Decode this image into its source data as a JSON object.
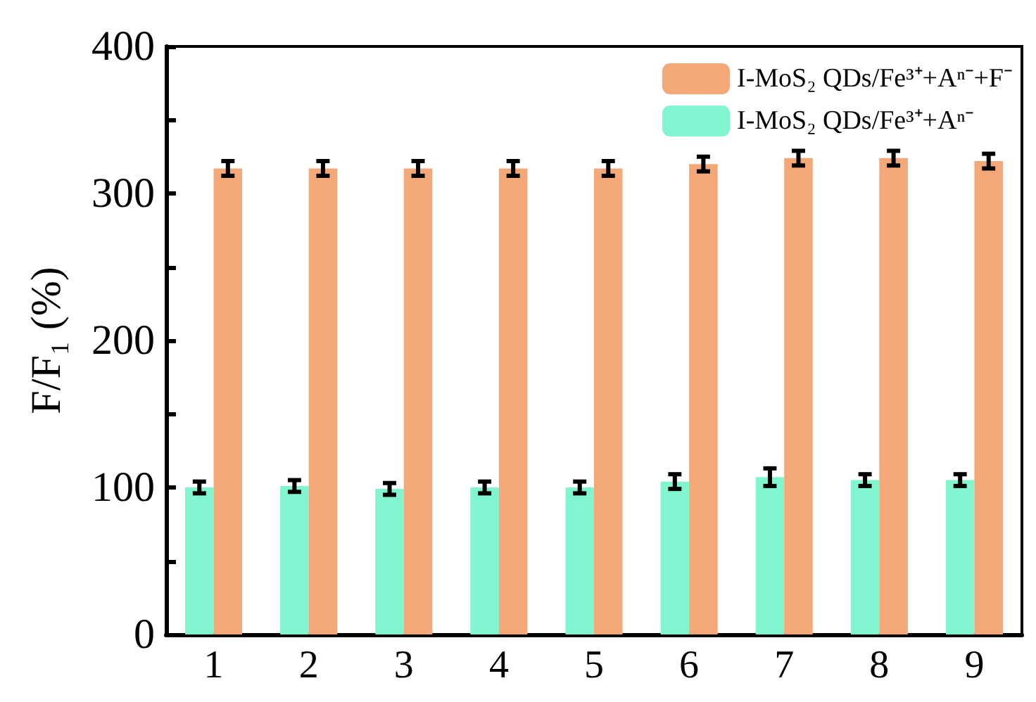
{
  "chart_data": {
    "type": "bar",
    "ylabel": "F/F₁ (%)",
    "categories": [
      "1",
      "2",
      "3",
      "4",
      "5",
      "6",
      "7",
      "8",
      "9"
    ],
    "series": [
      {
        "name": "I-MoS₂ QDs/Fe³⁺+Aⁿ⁻",
        "color": "#80f5cf",
        "values": [
          100,
          101,
          99,
          100,
          100,
          104,
          107,
          105,
          105
        ],
        "errors": [
          4,
          4,
          4,
          4,
          4,
          5,
          6,
          4,
          4
        ]
      },
      {
        "name": "I-MoS₂ QDs/Fe³⁺+Aⁿ⁻+F⁻",
        "color": "#f4a878",
        "values": [
          317,
          317,
          317,
          317,
          317,
          320,
          324,
          324,
          322
        ],
        "errors": [
          5,
          5,
          5,
          5,
          5,
          5,
          5,
          5,
          5
        ]
      }
    ],
    "ylim": [
      0,
      400
    ],
    "yticks": [
      0,
      {
        "value": 50,
        "label": null
      },
      100,
      {
        "value": 150,
        "label": null
      },
      200,
      {
        "value": 250,
        "label": null
      },
      300,
      {
        "value": 350,
        "label": null
      },
      400
    ],
    "grid": false,
    "legend": "top right"
  }
}
